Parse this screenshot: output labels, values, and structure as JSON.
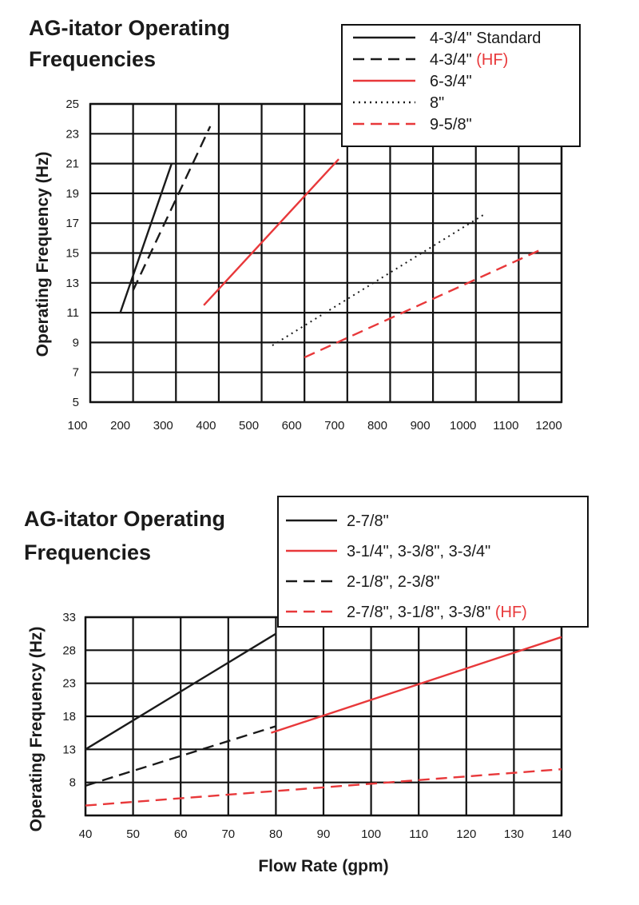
{
  "colors": {
    "black": "#1a1a1a",
    "red": "#e8383a",
    "grid": "#111111"
  },
  "chart_data": [
    {
      "type": "line",
      "title": [
        "AG-itator Operating",
        "Frequencies"
      ],
      "xlabel": "",
      "ylabel": "Operating Frequency (Hz)",
      "xlim": [
        100,
        1200
      ],
      "ylim": [
        5,
        25
      ],
      "x_ticks": [
        100,
        200,
        300,
        400,
        500,
        600,
        700,
        800,
        900,
        1000,
        1100,
        1200
      ],
      "y_ticks": [
        5,
        7,
        9,
        11,
        13,
        15,
        17,
        19,
        21,
        23,
        25
      ],
      "grid": true,
      "legend_position": "top-right",
      "series": [
        {
          "name": "4-3/4\" Standard",
          "name_suffix": "",
          "color": "black",
          "style": "solid",
          "x": [
            170,
            290
          ],
          "y": [
            11,
            21
          ]
        },
        {
          "name": "4-3/4\" ",
          "name_suffix": "(HF)",
          "color": "black",
          "style": "dashed",
          "x": [
            200,
            380
          ],
          "y": [
            12.5,
            23.5
          ]
        },
        {
          "name": "6-3/4\"",
          "name_suffix": "",
          "color": "red",
          "style": "solid",
          "x": [
            365,
            680
          ],
          "y": [
            11.5,
            21.3
          ]
        },
        {
          "name": "8\"",
          "name_suffix": "",
          "color": "black",
          "style": "dotted",
          "x": [
            525,
            1020
          ],
          "y": [
            8.8,
            17.6
          ]
        },
        {
          "name": "9-5/8\"",
          "name_suffix": "",
          "color": "red",
          "style": "dashed",
          "x": [
            600,
            1150
          ],
          "y": [
            8,
            15.2
          ]
        }
      ]
    },
    {
      "type": "line",
      "title": [
        "AG-itator Operating",
        "Frequencies"
      ],
      "xlabel": "Flow Rate (gpm)",
      "ylabel": "Operating Frequency (Hz)",
      "xlim": [
        40,
        140
      ],
      "ylim": [
        3,
        33
      ],
      "x_ticks": [
        40,
        50,
        60,
        70,
        80,
        90,
        100,
        110,
        120,
        130,
        140
      ],
      "y_ticks": [
        8,
        13,
        18,
        23,
        28,
        33
      ],
      "grid": true,
      "legend_position": "top-right",
      "series": [
        {
          "name": "2-7/8\"",
          "name_suffix": "",
          "color": "black",
          "style": "solid",
          "x": [
            40,
            80
          ],
          "y": [
            13,
            30.5
          ]
        },
        {
          "name": "3-1/4\", 3-3/8\", 3-3/4\"",
          "name_suffix": "",
          "color": "red",
          "style": "solid",
          "x": [
            79,
            140
          ],
          "y": [
            15.5,
            30
          ]
        },
        {
          "name": "2-1/8\", 2-3/8\"",
          "name_suffix": "",
          "color": "black",
          "style": "dashed",
          "x": [
            40,
            80
          ],
          "y": [
            7.5,
            16.5
          ]
        },
        {
          "name": "2-7/8\", 3-1/8\", 3-3/8\" ",
          "name_suffix": "(HF)",
          "color": "red",
          "style": "dashed",
          "x": [
            40,
            140
          ],
          "y": [
            4.5,
            10
          ]
        }
      ]
    }
  ]
}
